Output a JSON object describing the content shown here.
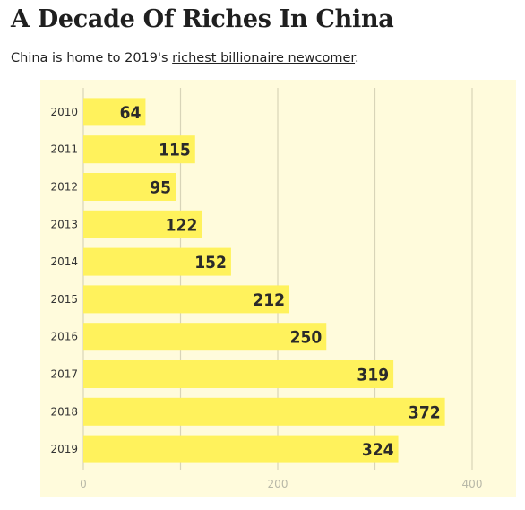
{
  "header": {
    "title": "A Decade Of Riches In China",
    "subtitle_prefix": "China is home to 2019's ",
    "subtitle_link": "richest billionaire newcomer",
    "subtitle_suffix": "."
  },
  "colors": {
    "panel_background": "#fffbdc",
    "bar_fill": "#fff25c",
    "gridline": "#d8d4b8"
  },
  "chart_data": {
    "type": "bar",
    "orientation": "horizontal",
    "categories": [
      "2010",
      "2011",
      "2012",
      "2013",
      "2014",
      "2015",
      "2016",
      "2017",
      "2018",
      "2019"
    ],
    "values": [
      64,
      115,
      95,
      122,
      152,
      212,
      250,
      319,
      372,
      324
    ],
    "xlim": [
      0,
      400
    ],
    "x_ticks": [
      0,
      200,
      400
    ],
    "x_ticklabels": [
      "0",
      "200",
      "400"
    ],
    "gridline_values": [
      0,
      100,
      200,
      300,
      400
    ],
    "data_labels": true,
    "grid": true,
    "legend": false
  }
}
